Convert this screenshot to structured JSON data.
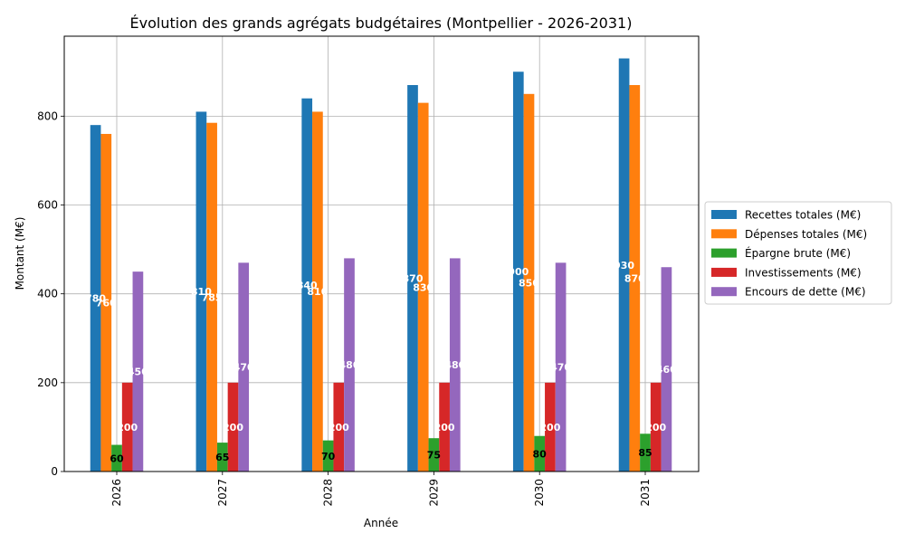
{
  "chart_data": {
    "type": "bar",
    "title": "Évolution des grands agrégats budgétaires (Montpellier - 2026-2031)",
    "xlabel": "Année",
    "ylabel": "Montant (M€)",
    "categories": [
      "2026",
      "2027",
      "2028",
      "2029",
      "2030",
      "2031"
    ],
    "ylim": [
      0,
      980
    ],
    "yticks": [
      0,
      200,
      400,
      600,
      800
    ],
    "grid": true,
    "legend_position": "right",
    "series": [
      {
        "name": "Recettes totales (M€)",
        "color": "#1f77b4",
        "values": [
          780,
          810,
          840,
          870,
          900,
          930
        ],
        "label_color": "#ffffff"
      },
      {
        "name": "Dépenses totales (M€)",
        "color": "#ff7f0e",
        "values": [
          760,
          785,
          810,
          830,
          850,
          870
        ],
        "label_color": "#ffffff"
      },
      {
        "name": "Épargne brute (M€)",
        "color": "#2ca02c",
        "values": [
          60,
          65,
          70,
          75,
          80,
          85
        ],
        "label_color": "#000000"
      },
      {
        "name": "Investissements (M€)",
        "color": "#d62728",
        "values": [
          200,
          200,
          200,
          200,
          200,
          200
        ],
        "label_color": "#ffffff"
      },
      {
        "name": "Encours de dette (M€)",
        "color": "#9467bd",
        "values": [
          450,
          470,
          480,
          480,
          470,
          460
        ],
        "label_color": "#ffffff"
      }
    ]
  }
}
